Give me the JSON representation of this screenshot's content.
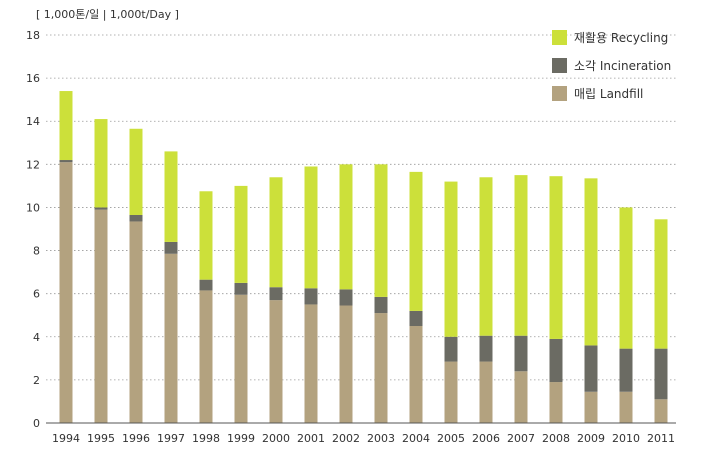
{
  "chart_data": {
    "type": "bar",
    "stacked": true,
    "unit_label": "[ 1,000톤/일 | 1,000t/Day ]",
    "categories": [
      "1994",
      "1995",
      "1996",
      "1997",
      "1998",
      "1999",
      "2000",
      "2001",
      "2002",
      "2003",
      "2004",
      "2005",
      "2006",
      "2007",
      "2008",
      "2009",
      "2010",
      "2011"
    ],
    "ylim": [
      0,
      18
    ],
    "yticks": [
      "0",
      "2",
      "4",
      "6",
      "8",
      "10",
      "12",
      "14",
      "16",
      "18"
    ],
    "grid": true,
    "legend_position": "top-right",
    "series": [
      {
        "name": "매립 Landfill",
        "color": "#b3a27f",
        "values": [
          12.1,
          9.9,
          9.35,
          7.85,
          6.15,
          5.95,
          5.7,
          5.5,
          5.45,
          5.1,
          4.5,
          2.85,
          2.85,
          2.4,
          1.9,
          1.45,
          1.45,
          1.1
        ]
      },
      {
        "name": "소각 Incineration",
        "color": "#6b6b63",
        "values": [
          0.1,
          0.1,
          0.3,
          0.55,
          0.5,
          0.55,
          0.6,
          0.75,
          0.75,
          0.75,
          0.7,
          1.15,
          1.2,
          1.65,
          2.0,
          2.15,
          2.0,
          2.35
        ]
      },
      {
        "name": "재활용 Recycling",
        "color": "#cce03a",
        "values": [
          3.2,
          4.1,
          4.0,
          4.2,
          4.1,
          4.5,
          5.1,
          5.65,
          5.8,
          6.15,
          6.45,
          7.2,
          7.35,
          7.45,
          7.55,
          7.75,
          6.55,
          6.0
        ]
      }
    ]
  }
}
